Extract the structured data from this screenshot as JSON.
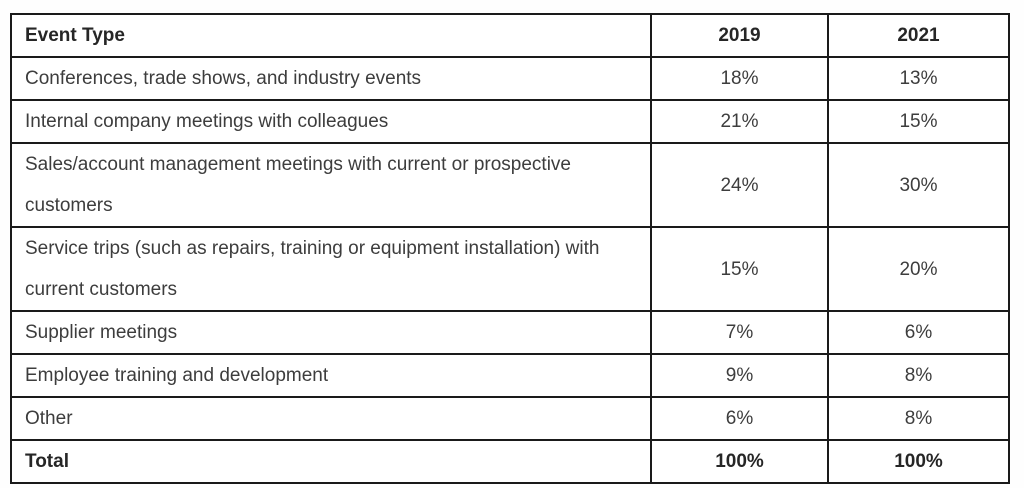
{
  "table": {
    "columns": [
      "Event Type",
      "2019",
      "2021"
    ],
    "rows": [
      {
        "label": "Conferences, trade shows, and industry events",
        "y2019": "18%",
        "y2021": "13%"
      },
      {
        "label": "Internal company meetings with colleagues",
        "y2019": "21%",
        "y2021": "15%"
      },
      {
        "label": "Sales/account management meetings with current or prospective customers",
        "y2019": "24%",
        "y2021": "30%"
      },
      {
        "label": "Service trips (such as repairs, training or equipment installation) with current customers",
        "y2019": "15%",
        "y2021": "20%"
      },
      {
        "label": "Supplier meetings",
        "y2019": "7%",
        "y2021": "6%"
      },
      {
        "label": "Employee training and development",
        "y2019": "9%",
        "y2021": "8%"
      },
      {
        "label": "Other",
        "y2019": "6%",
        "y2021": "8%"
      }
    ],
    "total": {
      "label": "Total",
      "y2019": "100%",
      "y2021": "100%"
    }
  },
  "chart_data": {
    "type": "table",
    "categories": [
      "Conferences, trade shows, and industry events",
      "Internal company meetings with colleagues",
      "Sales/account management meetings with current or prospective customers",
      "Service trips (such as repairs, training or equipment installation) with current customers",
      "Supplier meetings",
      "Employee training and development",
      "Other"
    ],
    "series": [
      {
        "name": "2019",
        "values": [
          18,
          21,
          24,
          15,
          7,
          9,
          6
        ],
        "total": 100
      },
      {
        "name": "2021",
        "values": [
          13,
          15,
          30,
          20,
          6,
          8,
          8
        ],
        "total": 100
      }
    ]
  },
  "colors": {
    "border": "#1a1a1a",
    "text": "#3d3d3d",
    "bold_text": "#262626",
    "background": "#ffffff"
  }
}
